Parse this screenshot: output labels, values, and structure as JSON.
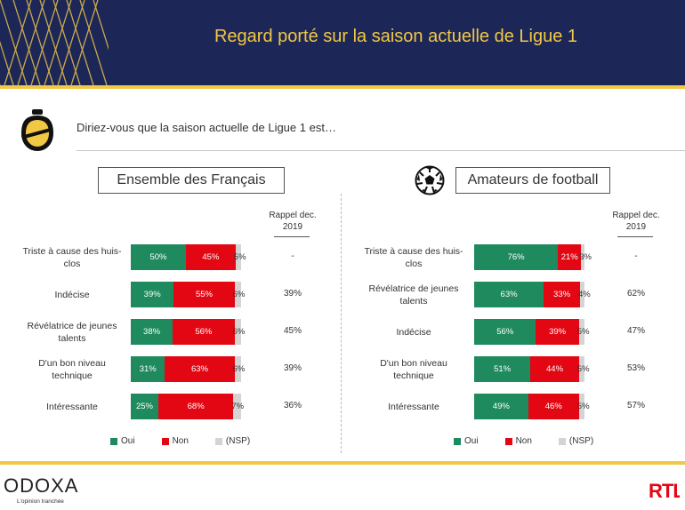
{
  "header": {
    "title": "Regard porté sur la saison actuelle de Ligue 1"
  },
  "question": "Diriez-vous que la saison actuelle de Ligue 1 est…",
  "colors": {
    "oui": "#1f8a5e",
    "non": "#e30613",
    "nsp": "#d4d4d4",
    "navy": "#1c2757",
    "gold": "#f2c744"
  },
  "icons": {
    "badge": "stopwatch-badge-icon",
    "ball": "soccer-ball-icon"
  },
  "brand": {
    "name": "ODOXA",
    "tagline": "L'opinion tranchée",
    "partner": "RTL"
  },
  "chart_data": [
    {
      "type": "bar",
      "stacked": true,
      "orientation": "horizontal",
      "title": "Ensemble des Français",
      "rappel_header": "Rappel dec. 2019",
      "categories": [
        "Triste à cause des huis-clos",
        "Indécise",
        "Révélatrice de jeunes talents",
        "D'un bon niveau technique",
        "Intéressante"
      ],
      "series": [
        {
          "name": "Oui",
          "values": [
            50,
            39,
            38,
            31,
            25
          ]
        },
        {
          "name": "Non",
          "values": [
            45,
            55,
            56,
            63,
            68
          ]
        },
        {
          "name": "(NSP)",
          "values": [
            5,
            6,
            6,
            6,
            7
          ]
        }
      ],
      "value_labels": [
        [
          "50%",
          "45%",
          "5%"
        ],
        [
          "39%",
          "55%",
          "6%"
        ],
        [
          "38%",
          "56%",
          "6%"
        ],
        [
          "31%",
          "63%",
          "6%"
        ],
        [
          "25%",
          "68%",
          "7%"
        ]
      ],
      "rappel_2019": [
        "-",
        "39%",
        "45%",
        "39%",
        "36%"
      ],
      "legend": [
        "Oui",
        "Non",
        "(NSP)"
      ],
      "legend_position": "bottom"
    },
    {
      "type": "bar",
      "stacked": true,
      "orientation": "horizontal",
      "title": "Amateurs de football",
      "rappel_header": "Rappel dec. 2019",
      "categories": [
        "Triste à cause des huis-clos",
        "Révélatrice de jeunes talents",
        "Indécise",
        "D'un bon niveau technique",
        "Intéressante"
      ],
      "series": [
        {
          "name": "Oui",
          "values": [
            76,
            63,
            56,
            51,
            49
          ]
        },
        {
          "name": "Non",
          "values": [
            21,
            33,
            39,
            44,
            46
          ]
        },
        {
          "name": "(NSP)",
          "values": [
            3,
            4,
            5,
            5,
            5
          ]
        }
      ],
      "value_labels": [
        [
          "76%",
          "21%",
          "3%"
        ],
        [
          "63%",
          "33%",
          "4%"
        ],
        [
          "56%",
          "39%",
          "5%"
        ],
        [
          "51%",
          "44%",
          "5%"
        ],
        [
          "49%",
          "46%",
          "5%"
        ]
      ],
      "rappel_2019": [
        "-",
        "62%",
        "47%",
        "53%",
        "57%"
      ],
      "legend": [
        "Oui",
        "Non",
        "(NSP)"
      ],
      "legend_position": "bottom"
    }
  ]
}
